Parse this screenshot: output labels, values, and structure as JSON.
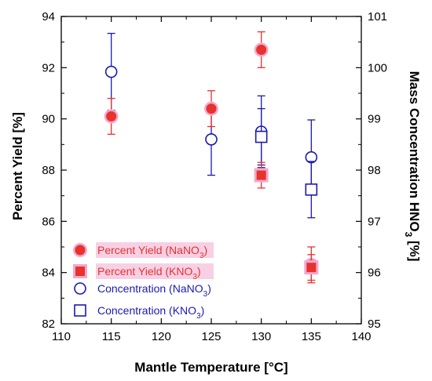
{
  "chart_data": {
    "type": "scatter",
    "xlabel": "Mantle Temperature [°C]",
    "ylabel": "Percent Yield [%]",
    "y2label_main": "Mass Concentration HNO",
    "y2label_sub": "3",
    "y2label_tail": " [%]",
    "xlim": [
      110,
      140
    ],
    "ylim": [
      82,
      94
    ],
    "y2lim": [
      95,
      101
    ],
    "xticks": [
      110,
      115,
      120,
      125,
      130,
      135,
      140
    ],
    "yticks": [
      82,
      84,
      86,
      88,
      90,
      92,
      94
    ],
    "y2ticks": [
      95,
      96,
      97,
      98,
      99,
      100,
      101
    ],
    "legend_position": "lower-left",
    "colors": {
      "yield": "#e8322d",
      "yield_halo": "#f1a9cf",
      "concentration": "#1a1ab0"
    },
    "series": [
      {
        "name": "Percent Yield (NaNO3)",
        "legend_main": "Percent Yield (NaNO",
        "legend_sub": "3",
        "legend_tail": ")",
        "axis": "left",
        "marker": "filled-circle",
        "points": [
          {
            "x": 115,
            "y": 90.1,
            "err": 0.7
          },
          {
            "x": 125,
            "y": 90.4,
            "err": 0.7
          },
          {
            "x": 130,
            "y": 92.7,
            "err": 0.7
          },
          {
            "x": 135,
            "y": 84.3,
            "err": 0.7
          }
        ]
      },
      {
        "name": "Percent Yield (KNO3)",
        "legend_main": "Percent Yield (KNO",
        "legend_sub": "3",
        "legend_tail": ")",
        "axis": "left",
        "marker": "filled-square",
        "points": [
          {
            "x": 130,
            "y": 87.8,
            "err": 0.5
          },
          {
            "x": 135,
            "y": 84.2,
            "err": 0.5
          }
        ]
      },
      {
        "name": "Concentration (NaNO3)",
        "legend_main": "Concentration (NaNO",
        "legend_sub": "3",
        "legend_tail": ")",
        "axis": "right",
        "marker": "open-circle",
        "points": [
          {
            "x": 115,
            "y": 99.92,
            "err": 0.75
          },
          {
            "x": 125,
            "y": 98.6,
            "err": 0.7
          },
          {
            "x": 130,
            "y": 98.75,
            "err": 0.7
          },
          {
            "x": 135,
            "y": 98.25,
            "err": 0.73
          }
        ]
      },
      {
        "name": "Concentration (KNO3)",
        "legend_main": "Concentration (KNO",
        "legend_sub": "3",
        "legend_tail": ")",
        "axis": "right",
        "marker": "open-square",
        "points": [
          {
            "x": 130,
            "y": 98.65,
            "err": 0.55
          },
          {
            "x": 135,
            "y": 97.62,
            "err": 0.55
          }
        ]
      }
    ]
  }
}
